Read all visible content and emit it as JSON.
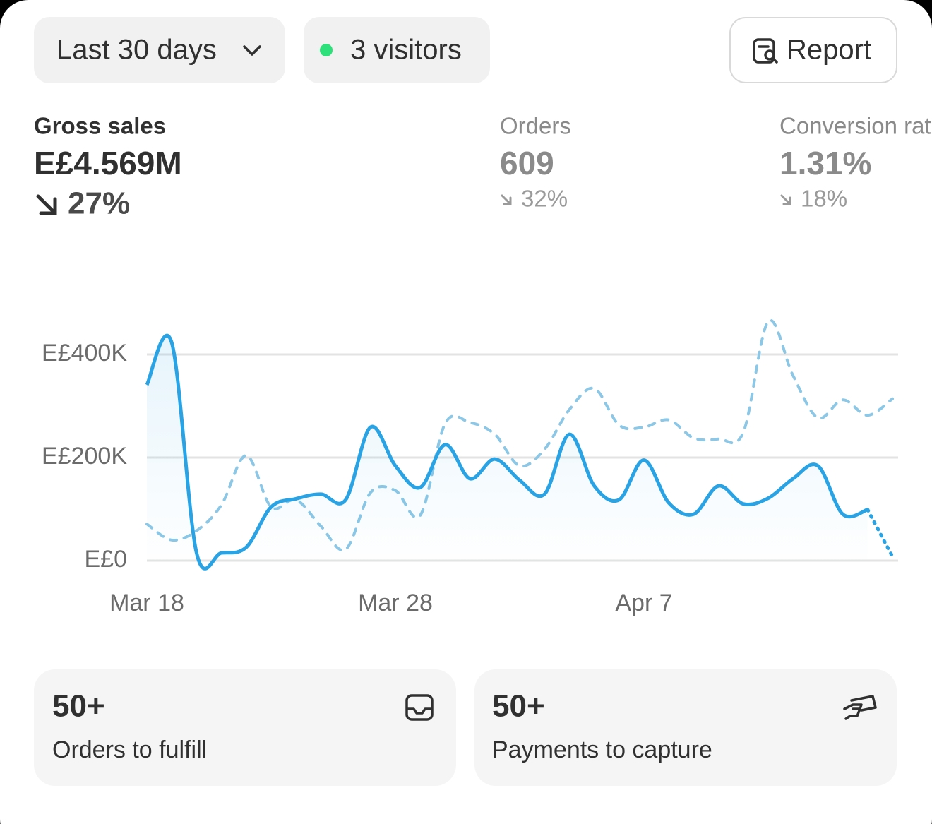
{
  "toolbar": {
    "date_range": "Last 30 days",
    "visitors": "3 visitors",
    "report": "Report"
  },
  "metrics": [
    {
      "label": "Gross sales",
      "value": "E£4.569M",
      "change": "27%"
    },
    {
      "label": "Orders",
      "value": "609",
      "change": "32%"
    },
    {
      "label": "Conversion rate",
      "value": "1.31%",
      "change": "18%"
    }
  ],
  "chart_data": {
    "type": "line",
    "categories": [
      "Mar 18",
      null,
      null,
      null,
      null,
      null,
      null,
      null,
      null,
      null,
      "Mar 28",
      null,
      null,
      null,
      null,
      null,
      null,
      null,
      null,
      null,
      "Apr 7",
      null,
      null,
      null,
      null,
      null,
      null,
      null,
      null,
      null,
      null
    ],
    "series": [
      {
        "color": "#2aa3e4",
        "dashed": false,
        "values": [
          341000,
          423000,
          15000,
          15000,
          26000,
          104000,
          120000,
          129000,
          118000,
          259000,
          184000,
          142000,
          225000,
          159000,
          197000,
          156000,
          129000,
          245000,
          145000,
          118000,
          195000,
          112000,
          90000,
          145000,
          110000,
          121000,
          159000,
          184000,
          90000,
          99000,
          8000
        ]
      },
      {
        "color": "#8cc7e6",
        "dashed": true,
        "values": [
          71000,
          40000,
          58000,
          108000,
          204000,
          104000,
          118000,
          67000,
          22000,
          132000,
          136000,
          88000,
          266000,
          268000,
          245000,
          184000,
          216000,
          293000,
          334000,
          263000,
          259000,
          273000,
          238000,
          236000,
          249000,
          464000,
          359000,
          277000,
          312000,
          282000,
          314000
        ]
      }
    ],
    "ylim": [
      0,
      480000
    ],
    "yticks": [
      {
        "value": 0,
        "label": "E£0"
      },
      {
        "value": 200000,
        "label": "E£200K"
      },
      {
        "value": 400000,
        "label": "E£400K"
      }
    ],
    "grid": true
  },
  "cards": [
    {
      "count": "50+",
      "label": "Orders to fulfill"
    },
    {
      "count": "50+",
      "label": "Payments to capture"
    }
  ]
}
